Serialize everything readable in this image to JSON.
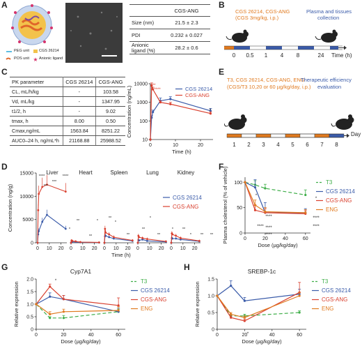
{
  "panels": {
    "A": "A",
    "B": "B",
    "C": "C",
    "D": "D",
    "E": "E",
    "F": "F",
    "G": "G",
    "H": "H"
  },
  "panelA": {
    "legend": {
      "peg": "PEG unit",
      "pos": "POS unit",
      "cgs": "CGS 26214",
      "anionic": "Anionic ligand"
    },
    "table": {
      "header": "CGS-ANG",
      "rows": [
        {
          "label": "Size (nm)",
          "value": "21.5 ± 2.3"
        },
        {
          "label": "PDI",
          "value": "0.232 ± 0.027"
        },
        {
          "label": "Anionic ligand (%)",
          "value": "28.2 ± 0.6"
        }
      ]
    }
  },
  "panelB": {
    "dose_text_1": "CGS 26214, CGS-ANG",
    "dose_text_2": "(CGS 3mg/kg, i.p.)",
    "collect_text_1": "Plasma and tissues",
    "collect_text_2": "collection",
    "ticks": [
      "0",
      "0.5",
      "1",
      "4",
      "8",
      "24"
    ],
    "axis_label": "Time (h)"
  },
  "panelC": {
    "table": {
      "headers": [
        "PK parameter",
        "CGS 26214",
        "CGS-ANG"
      ],
      "rows": [
        [
          "CL, mL/h/kg",
          "-",
          "103.58"
        ],
        [
          "Vd, mL/kg",
          "-",
          "1347.95"
        ],
        [
          "t1/2, h",
          "-",
          "9.02"
        ],
        [
          "tmax, h",
          "8.00",
          "0.50"
        ],
        [
          "Cmax,ng/mL",
          "1563.84",
          "8251.22"
        ],
        [
          "AUC0–24 h, ng/mL*h",
          "21168.88",
          "25988.52"
        ]
      ]
    }
  },
  "panelE": {
    "text_1": "T3, CGS 26214, CGS-ANG, ENG",
    "text_2": "(CGS/T3 10,20 or 60 µg/kg/day, i.p.)",
    "text_3": "Therapeutic efficiency",
    "text_4": "evaluation",
    "ticks": [
      "1",
      "2",
      "3",
      "4",
      "5",
      "6",
      "7",
      "8"
    ],
    "axis_label": "Day"
  },
  "chart_data": [
    {
      "id": "C",
      "type": "line",
      "xlabel": "Time (h)",
      "ylabel": "Concentration (ng/mL)",
      "yscale": "log",
      "xlim": [
        0,
        25
      ],
      "ylim": [
        10,
        10000
      ],
      "xticks": [
        0,
        10,
        20
      ],
      "yticks": [
        10,
        100,
        1000,
        10000
      ],
      "ytick_labels": [
        "10",
        "100",
        "1000",
        "10000"
      ],
      "significance": [
        "***",
        "****",
        "*"
      ],
      "series": [
        {
          "name": "CGS 26214",
          "color": "#3a5ba9",
          "x": [
            0,
            0.5,
            1,
            4,
            8,
            24
          ],
          "y": [
            10,
            150,
            300,
            1200,
            1500,
            350
          ],
          "err": [
            0,
            40,
            80,
            500,
            500,
            120
          ]
        },
        {
          "name": "CGS-ANG",
          "color": "#d9402f",
          "x": [
            0,
            0.5,
            1,
            4,
            8,
            24
          ],
          "y": [
            10,
            8000,
            5000,
            1000,
            800,
            250
          ],
          "err": [
            0,
            3000,
            1500,
            200,
            200,
            60
          ]
        }
      ]
    },
    {
      "id": "D",
      "type": "line",
      "ylabel": "Concentration (ng/g)",
      "xlabel": "Time (h)",
      "ylim": [
        0,
        15000
      ],
      "yticks": [
        0,
        5000,
        10000,
        15000
      ],
      "ytick_labels": [
        "0",
        "5000",
        "10000",
        "15000"
      ],
      "groups": [
        "Liver",
        "Heart",
        "Spleen",
        "Lung",
        "Kidney"
      ],
      "group_xticks": [
        "0",
        "10",
        "20"
      ],
      "times": [
        0,
        0.5,
        1,
        4,
        8,
        24
      ],
      "significance": [
        "****",
        "***",
        "***",
        "****",
        "**",
        "*",
        "**",
        "*",
        "**",
        "*",
        "**",
        "**",
        "*",
        "**",
        "*",
        "**",
        "*",
        "**",
        "**"
      ],
      "series": [
        {
          "name": "CGS 26214",
          "color": "#3a5ba9",
          "values": [
            [
              0,
              1800,
              2500,
              4500,
              6000,
              3000
            ],
            [
              0,
              250,
              200,
              150,
              100,
              50
            ],
            [
              0,
              1400,
              1500,
              1200,
              900,
              400
            ],
            [
              0,
              600,
              500,
              700,
              400,
              200
            ],
            [
              0,
              1000,
              900,
              900,
              700,
              300
            ]
          ]
        },
        {
          "name": "CGS-ANG",
          "color": "#d9402f",
          "values": [
            [
              0,
              7000,
              10500,
              12000,
              12500,
              11000
            ],
            [
              0,
              500,
              400,
              300,
              150,
              80
            ],
            [
              0,
              3000,
              2200,
              1800,
              1200,
              500
            ],
            [
              0,
              1500,
              1200,
              1000,
              800,
              300
            ],
            [
              0,
              2000,
              1800,
              1500,
              1000,
              400
            ]
          ]
        }
      ]
    },
    {
      "id": "F",
      "type": "line",
      "xlabel": "Dose (µg/kg/day)",
      "ylabel": "Plasma cholesterol (% of vehicle)",
      "xlim": [
        0,
        65
      ],
      "ylim": [
        0,
        110
      ],
      "xticks": [
        0,
        20,
        40,
        60
      ],
      "yticks": [
        0,
        50,
        100
      ],
      "significance": [
        "*",
        "****",
        "****",
        "****",
        "****",
        "*",
        "****",
        "****"
      ],
      "series": [
        {
          "name": "T3",
          "color": "#3fae49",
          "dash": "5,3",
          "x": [
            0,
            10,
            20,
            60
          ],
          "y": [
            100,
            95,
            88,
            75
          ],
          "err": [
            0,
            8,
            8,
            10
          ]
        },
        {
          "name": "CGS 26214",
          "color": "#3a5ba9",
          "x": [
            0,
            10,
            20,
            60
          ],
          "y": [
            100,
            90,
            40,
            40
          ],
          "err": [
            0,
            15,
            20,
            8
          ]
        },
        {
          "name": "CGS-ANG",
          "color": "#d9402f",
          "x": [
            0,
            10,
            20,
            60
          ],
          "y": [
            100,
            45,
            40,
            38
          ],
          "err": [
            0,
            10,
            8,
            6
          ]
        },
        {
          "name": "ENG",
          "color": "#e07a1f",
          "x": [
            0,
            10,
            20,
            60
          ],
          "y": [
            100,
            55,
            42,
            40
          ],
          "err": [
            0,
            10,
            8,
            6
          ]
        }
      ]
    },
    {
      "id": "G",
      "type": "line",
      "title": "Cyp7A1",
      "xlabel": "Dose (µg/kg/day)",
      "ylabel": "Relative expression",
      "xlim": [
        0,
        65
      ],
      "ylim": [
        0,
        2.0
      ],
      "xticks": [
        0,
        20,
        40,
        60
      ],
      "yticks": [
        0,
        0.5,
        1.0,
        1.5,
        2.0
      ],
      "ytick_labels": [
        "0",
        "0.5",
        "1.0",
        "1.5",
        "2.0"
      ],
      "significance": [
        "*"
      ],
      "series": [
        {
          "name": "T3",
          "color": "#3fae49",
          "dash": "5,3",
          "x": [
            0,
            10,
            20,
            60
          ],
          "y": [
            1.0,
            0.45,
            0.45,
            0.7
          ],
          "err": [
            0,
            0.05,
            0.1,
            0.1
          ]
        },
        {
          "name": "CGS 26214",
          "color": "#3a5ba9",
          "x": [
            0,
            10,
            20,
            60
          ],
          "y": [
            1.0,
            1.3,
            1.2,
            0.7
          ],
          "err": [
            0,
            0.15,
            0.15,
            0.15
          ]
        },
        {
          "name": "CGS-ANG",
          "color": "#d9402f",
          "x": [
            0,
            10,
            20,
            60
          ],
          "y": [
            1.0,
            1.7,
            1.2,
            0.95
          ],
          "err": [
            0,
            0.1,
            0.15,
            0.3
          ]
        },
        {
          "name": "ENG",
          "color": "#e07a1f",
          "x": [
            0,
            10,
            20,
            60
          ],
          "y": [
            1.0,
            0.6,
            0.7,
            0.75
          ],
          "err": [
            0,
            0.1,
            0.1,
            0.15
          ]
        }
      ]
    },
    {
      "id": "H",
      "type": "line",
      "title": "SREBP-1c",
      "xlabel": "Dose (µg/kg/day)",
      "ylabel": "Relative expression",
      "xlim": [
        0,
        65
      ],
      "ylim": [
        0,
        1.5
      ],
      "xticks": [
        0,
        20,
        40,
        60
      ],
      "yticks": [
        0,
        0.5,
        1.0,
        1.5
      ],
      "ytick_labels": [
        "0",
        "0.5",
        "1.0",
        "1.5"
      ],
      "significance": [
        "*"
      ],
      "series": [
        {
          "name": "T3",
          "color": "#3fae49",
          "dash": "5,3",
          "x": [
            0,
            10,
            20,
            60
          ],
          "y": [
            1.0,
            0.4,
            0.4,
            0.5
          ],
          "err": [
            0,
            0.05,
            0.05,
            0.05
          ]
        },
        {
          "name": "CGS 26214",
          "color": "#3a5ba9",
          "x": [
            0,
            10,
            20,
            60
          ],
          "y": [
            1.0,
            1.3,
            0.85,
            1.05
          ],
          "err": [
            0,
            0.15,
            0.1,
            0.15
          ]
        },
        {
          "name": "CGS-ANG",
          "color": "#d9402f",
          "x": [
            0,
            10,
            20,
            60
          ],
          "y": [
            1.0,
            0.35,
            0.25,
            1.1
          ],
          "err": [
            0,
            0.05,
            0.05,
            0.3
          ]
        },
        {
          "name": "ENG",
          "color": "#e07a1f",
          "x": [
            0,
            10,
            20,
            60
          ],
          "y": [
            1.0,
            0.45,
            0.35,
            1.0
          ],
          "err": [
            0,
            0.05,
            0.05,
            0.1
          ]
        }
      ]
    }
  ]
}
